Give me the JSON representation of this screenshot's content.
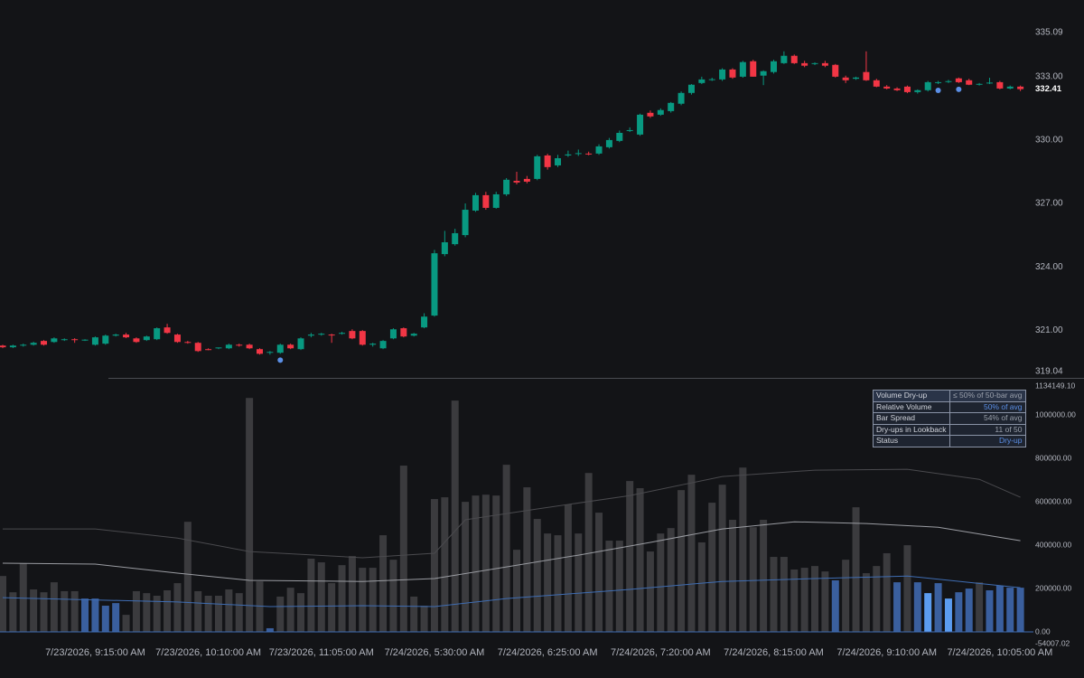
{
  "chart_data": {
    "type": "candlestick",
    "colors": {
      "up": "#089981",
      "down": "#f23645",
      "volume": "#3b3b3e",
      "dry_up": "#3a5f9e",
      "strong_dry_up": "#5b9cf0",
      "signal": "#5b8fe6"
    },
    "ylim": [
      319.04,
      335.09
    ],
    "yticks": [
      335.09,
      {
        "value": 333,
        "label": "333.00"
      },
      {
        "value": 330,
        "label": "330.00"
      },
      {
        "value": 327,
        "label": "327.00"
      },
      {
        "value": 324,
        "label": "324.00"
      },
      {
        "value": 321,
        "label": "321.00"
      },
      319.04
    ],
    "xticks": [
      {
        "value": 9,
        "label": "7/23/2026, 9:15:00 AM"
      },
      {
        "value": 20,
        "label": "7/23/2026, 10:10:00 AM"
      },
      {
        "value": 31,
        "label": "7/23/2026, 11:05:00 AM"
      },
      {
        "value": 42,
        "label": "7/24/2026, 5:30:00 AM"
      },
      {
        "value": 53,
        "label": "7/24/2026, 6:25:00 AM"
      },
      {
        "value": 64,
        "label": "7/24/2026, 7:20:00 AM"
      },
      {
        "value": 75,
        "label": "7/24/2026, 8:15:00 AM"
      },
      {
        "value": 86,
        "label": "7/24/2026, 9:10:00 AM"
      },
      {
        "value": 97,
        "label": "7/24/2026, 10:05:00 AM"
      }
    ],
    "ohlc": [
      [
        320.27,
        320.31,
        320.15,
        320.19
      ],
      [
        320.19,
        320.31,
        320.15,
        320.27
      ],
      [
        320.27,
        320.36,
        320.22,
        320.31
      ],
      [
        320.31,
        320.45,
        320.27,
        320.4
      ],
      [
        320.49,
        320.53,
        320.27,
        320.31
      ],
      [
        320.44,
        320.66,
        320.4,
        320.61
      ],
      [
        320.53,
        320.61,
        320.49,
        320.57
      ],
      [
        320.57,
        320.62,
        320.4,
        320.53
      ],
      [
        320.53,
        320.57,
        320.49,
        320.55
      ],
      [
        320.31,
        320.7,
        320.27,
        320.66
      ],
      [
        320.36,
        320.79,
        320.31,
        320.74
      ],
      [
        320.74,
        320.83,
        320.7,
        320.79
      ],
      [
        320.79,
        320.87,
        320.62,
        320.66
      ],
      [
        320.61,
        320.66,
        320.4,
        320.44
      ],
      [
        320.53,
        320.74,
        320.49,
        320.7
      ],
      [
        320.57,
        321.13,
        320.53,
        321.09
      ],
      [
        321.13,
        321.3,
        320.83,
        320.87
      ],
      [
        320.79,
        320.83,
        320.4,
        320.44
      ],
      [
        320.44,
        320.49,
        320.36,
        320.4
      ],
      [
        320.4,
        320.44,
        319.97,
        320.01
      ],
      [
        320.1,
        320.14,
        320.05,
        320.06
      ],
      [
        320.14,
        320.18,
        320.1,
        320.18
      ],
      [
        320.14,
        320.36,
        320.1,
        320.31
      ],
      [
        320.31,
        320.36,
        320.22,
        320.27
      ],
      [
        320.31,
        320.36,
        320.1,
        320.14
      ],
      [
        320.1,
        320.14,
        319.84,
        319.88
      ],
      [
        319.93,
        320.01,
        319.84,
        319.97
      ],
      [
        319.93,
        320.36,
        319.88,
        320.31
      ],
      [
        320.31,
        320.36,
        320.1,
        320.14
      ],
      [
        320.1,
        320.66,
        320.06,
        320.61
      ],
      [
        320.74,
        320.87,
        320.66,
        320.79
      ],
      [
        320.79,
        320.87,
        320.74,
        320.83
      ],
      [
        320.79,
        320.83,
        320.4,
        320.75
      ],
      [
        320.83,
        320.92,
        320.79,
        320.87
      ],
      [
        320.96,
        321.04,
        320.57,
        320.61
      ],
      [
        320.96,
        321.0,
        320.27,
        320.31
      ],
      [
        320.31,
        320.4,
        320.22,
        320.36
      ],
      [
        320.14,
        320.53,
        320.1,
        320.49
      ],
      [
        320.61,
        321.09,
        320.57,
        321.04
      ],
      [
        321.09,
        321.13,
        320.66,
        320.7
      ],
      [
        320.74,
        320.87,
        320.7,
        320.83
      ],
      [
        321.13,
        321.8,
        321.09,
        321.64
      ],
      [
        321.69,
        324.8,
        321.64,
        324.64
      ],
      [
        324.6,
        325.7,
        324.5,
        325.16
      ],
      [
        325.07,
        325.8,
        325.0,
        325.59
      ],
      [
        325.5,
        327.0,
        325.4,
        326.7
      ],
      [
        326.66,
        327.5,
        326.6,
        327.39
      ],
      [
        327.39,
        327.55,
        326.7,
        326.79
      ],
      [
        326.79,
        327.55,
        326.75,
        327.43
      ],
      [
        327.43,
        328.2,
        327.35,
        328.12
      ],
      [
        328.07,
        328.5,
        327.9,
        327.99
      ],
      [
        328.16,
        328.3,
        327.95,
        328.03
      ],
      [
        328.16,
        329.3,
        328.1,
        329.23
      ],
      [
        329.27,
        329.35,
        328.6,
        328.72
      ],
      [
        328.8,
        329.3,
        328.72,
        329.14
      ],
      [
        329.27,
        329.5,
        329.2,
        329.32
      ],
      [
        329.34,
        329.55,
        329.25,
        329.38
      ],
      [
        329.36,
        329.45,
        329.28,
        329.32
      ],
      [
        329.36,
        329.8,
        329.3,
        329.7
      ],
      [
        329.66,
        330.1,
        329.6,
        330.0
      ],
      [
        329.96,
        330.45,
        329.9,
        330.34
      ],
      [
        330.43,
        330.6,
        330.38,
        330.47
      ],
      [
        330.26,
        331.25,
        330.2,
        331.2
      ],
      [
        331.29,
        331.4,
        331.05,
        331.12
      ],
      [
        331.2,
        331.5,
        331.15,
        331.42
      ],
      [
        331.37,
        331.8,
        331.3,
        331.76
      ],
      [
        331.72,
        332.3,
        331.65,
        332.23
      ],
      [
        332.23,
        332.65,
        332.15,
        332.62
      ],
      [
        332.7,
        333.0,
        332.65,
        332.87
      ],
      [
        332.85,
        332.95,
        332.8,
        332.88
      ],
      [
        332.87,
        333.4,
        332.8,
        333.34
      ],
      [
        333.34,
        333.4,
        332.9,
        332.96
      ],
      [
        333.0,
        333.75,
        332.95,
        333.69
      ],
      [
        333.73,
        333.8,
        333.0,
        333.0
      ],
      [
        333.05,
        333.3,
        332.6,
        333.26
      ],
      [
        333.22,
        333.8,
        333.15,
        333.73
      ],
      [
        333.64,
        334.2,
        333.6,
        333.99
      ],
      [
        333.99,
        334.05,
        333.6,
        333.64
      ],
      [
        333.64,
        333.75,
        333.45,
        333.52
      ],
      [
        333.6,
        333.68,
        333.55,
        333.64
      ],
      [
        333.64,
        333.75,
        333.45,
        333.52
      ],
      [
        333.56,
        333.6,
        332.96,
        333.0
      ],
      [
        332.96,
        333.05,
        332.7,
        332.83
      ],
      [
        332.9,
        333.0,
        332.85,
        332.96
      ],
      [
        333.22,
        334.2,
        332.8,
        332.83
      ],
      [
        332.83,
        332.9,
        332.5,
        332.53
      ],
      [
        332.53,
        332.6,
        332.4,
        332.44
      ],
      [
        332.44,
        332.5,
        332.32,
        332.36
      ],
      [
        332.53,
        332.58,
        332.22,
        332.27
      ],
      [
        332.27,
        332.4,
        332.2,
        332.36
      ],
      [
        332.36,
        332.8,
        332.3,
        332.74
      ],
      [
        332.7,
        332.8,
        332.65,
        332.74
      ],
      [
        332.75,
        332.85,
        332.7,
        332.79
      ],
      [
        332.92,
        332.96,
        332.7,
        332.74
      ],
      [
        332.83,
        332.9,
        332.6,
        332.62
      ],
      [
        332.62,
        332.7,
        332.58,
        332.66
      ],
      [
        332.7,
        332.95,
        332.65,
        332.72
      ],
      [
        332.74,
        332.8,
        332.4,
        332.44
      ],
      [
        332.44,
        332.58,
        332.4,
        332.53
      ],
      [
        332.53,
        332.58,
        332.32,
        332.41
      ]
    ],
    "signals": [
      27,
      91,
      93
    ],
    "volume": [
      258000,
      183000,
      317000,
      196000,
      183000,
      229000,
      188000,
      188000,
      154000,
      154000,
      121000,
      133000,
      79000,
      188000,
      179000,
      167000,
      192000,
      225000,
      508000,
      188000,
      167000,
      167000,
      196000,
      179000,
      1079000,
      233000,
      17000,
      163000,
      204000,
      179000,
      338000,
      321000,
      225000,
      308000,
      350000,
      296000,
      296000,
      446000,
      333000,
      767000,
      163000,
      121000,
      613000,
      621000,
      1067000,
      600000,
      629000,
      633000,
      629000,
      771000,
      379000,
      667000,
      521000,
      454000,
      446000,
      588000,
      454000,
      733000,
      550000,
      421000,
      421000,
      696000,
      663000,
      371000,
      454000,
      479000,
      654000,
      725000,
      413000,
      596000,
      679000,
      517000,
      758000,
      483000,
      517000,
      346000,
      346000,
      288000,
      296000,
      304000,
      279000,
      238000,
      333000,
      575000,
      271000,
      304000,
      363000,
      229000,
      400000,
      229000,
      179000,
      225000,
      154000,
      183000,
      200000,
      229000,
      192000,
      213000,
      204000,
      204000
    ],
    "dry_up_bars": [
      8,
      9,
      10,
      11,
      26,
      81,
      87,
      89,
      91,
      93,
      94,
      96,
      97,
      98,
      99
    ],
    "strong_dry_up_bars": [
      90,
      92
    ],
    "y2lim": [
      -54007.02,
      1134149.1
    ],
    "y2ticks": [
      {
        "value": 1134149.1,
        "label": "1134149.10"
      },
      {
        "value": 1000000,
        "label": "1000000.00"
      },
      {
        "value": 800000,
        "label": "800000.00"
      },
      {
        "value": 600000,
        "label": "600000.00"
      },
      {
        "value": 400000,
        "label": "400000.00"
      },
      {
        "value": 200000,
        "label": "200000.00"
      },
      {
        "value": 0,
        "label": "0.00"
      },
      -54007.02
    ],
    "volume_lines": [
      {
        "color": "#4a4a4e",
        "x": [
          0,
          9,
          17,
          24,
          35,
          42,
          45,
          52,
          61,
          70,
          79,
          88,
          95,
          99
        ],
        "values": [
          475000,
          475000,
          433000,
          371000,
          342000,
          363000,
          517000,
          567000,
          629000,
          717000,
          746000,
          750000,
          704000,
          621000
        ]
      },
      {
        "color": "#9a9ca2",
        "x": [
          0,
          9,
          17,
          24,
          35,
          42,
          49,
          56,
          63,
          70,
          77,
          84,
          91,
          99
        ],
        "values": [
          317000,
          313000,
          271000,
          238000,
          233000,
          246000,
          300000,
          354000,
          413000,
          475000,
          508000,
          500000,
          483000,
          421000
        ]
      },
      {
        "color": "#3f6db3",
        "x": [
          0,
          17,
          26,
          35,
          42,
          49,
          61,
          70,
          79,
          88,
          99
        ],
        "values": [
          158000,
          138000,
          117000,
          121000,
          117000,
          154000,
          196000,
          233000,
          246000,
          258000,
          204000
        ]
      }
    ],
    "info_table": [
      [
        "Volume Dry-up",
        "≤ 50% of 50-bar avg"
      ],
      [
        "Relative Volume",
        "50% of avg"
      ],
      [
        "Bar Spread",
        "54% of avg"
      ],
      [
        "Dry-ups in Lookback",
        "11 of 50"
      ],
      [
        "Status",
        "Dry-up"
      ]
    ]
  }
}
